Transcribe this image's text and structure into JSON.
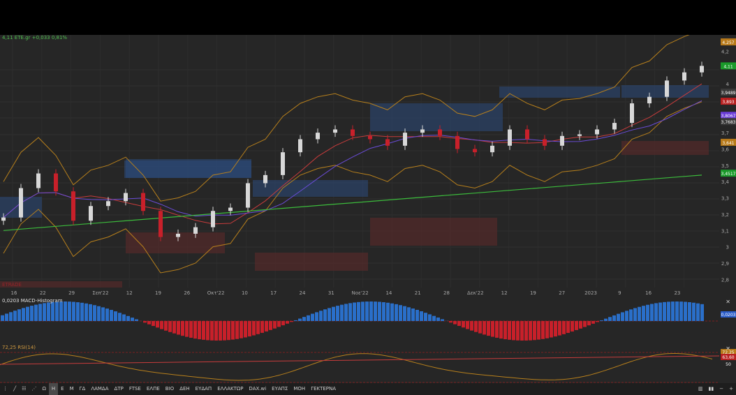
{
  "main": {
    "info_label": "4,11 ETE.gr +0,033 0,81%",
    "bottom_left_label": "ETRADE",
    "x_labels": [
      "16",
      "22",
      "29",
      "Σεπ'22",
      "12",
      "19",
      "26",
      "Οκτ'22",
      "10",
      "17",
      "24",
      "31",
      "Νοε'22",
      "14",
      "21",
      "28",
      "Δεκ'22",
      "12",
      "19",
      "27",
      "2023",
      "9",
      "16",
      "23"
    ],
    "y_labels": [
      "4,2",
      "4",
      "3,9",
      "3,7",
      "3,6",
      "3,5",
      "3,4",
      "3,3",
      "3,2",
      "3,1",
      "3",
      "2,9",
      "2,8"
    ],
    "price_tags": [
      "4,257",
      "4,11",
      "3,9489",
      "3,893",
      "3,8067",
      "3,7683",
      "3,641",
      "3,4517"
    ]
  },
  "macd": {
    "label": "0,0203 MACD-Histogram",
    "tag": "0,0203"
  },
  "rsi": {
    "label": "72,25 RSI(14)",
    "tags": [
      "72,25",
      "63,60",
      "50"
    ]
  },
  "toolbar": {
    "items": [
      "Ω",
      "Η",
      "Ε",
      "Μ",
      "ΓΔ",
      "ΛΑΜΔΑ",
      "ΔΤΡ",
      "FTSE",
      "ΕΛΠΕ",
      "ΒΙΟ",
      "ΔΕΗ",
      "ΕΥΔΑΠ",
      "ΕΛΛΑΚΤΩΡ",
      "DAX.wi",
      "ΕΥΑΠΣ",
      "ΜΟΗ",
      "ΓΕΚΤΕΡΝΑ"
    ],
    "active_index": 1
  },
  "colors": {
    "up": "#d8d8d8",
    "down": "#c8202a",
    "macd_pos": "#2a6fc9",
    "macd_neg": "#c8202a",
    "ma_green": "#3cbc3c",
    "ma_red": "#c83c3c",
    "ma_purple": "#6a4cd8",
    "bands": "#b8801c",
    "zone_blue": "#2c4a7c",
    "zone_red": "#5c2a2a",
    "tag_orange": "#b87a1a",
    "tag_green": "#1a9a2a",
    "tag_purple": "#6a3cd8",
    "tag_red": "#b82020",
    "tag_blue": "#2a5cc8"
  },
  "chart_data": {
    "type": "candlestick",
    "x": [
      "16",
      "22",
      "29",
      "Σεπ'22",
      "12",
      "19",
      "26",
      "Οκτ'22",
      "10",
      "17",
      "24",
      "31",
      "Νοε'22",
      "14",
      "21",
      "28",
      "Δεκ'22",
      "12",
      "19",
      "27",
      "2023",
      "9",
      "16",
      "23"
    ],
    "close_series": [
      3.18,
      3.36,
      3.45,
      3.34,
      3.16,
      3.25,
      3.28,
      3.33,
      3.22,
      3.06,
      3.08,
      3.12,
      3.22,
      3.24,
      3.39,
      3.44,
      3.58,
      3.66,
      3.7,
      3.72,
      3.68,
      3.66,
      3.62,
      3.7,
      3.72,
      3.68,
      3.6,
      3.58,
      3.62,
      3.72,
      3.66,
      3.62,
      3.68,
      3.69,
      3.72,
      3.76,
      3.88,
      3.92,
      4.02,
      4.07,
      4.11
    ],
    "ylim": [
      2.75,
      4.3
    ],
    "last_price": 4.11,
    "change": 0.033,
    "change_pct": 0.81,
    "macd_histogram_last": 0.0203,
    "rsi_last": 72.25
  }
}
